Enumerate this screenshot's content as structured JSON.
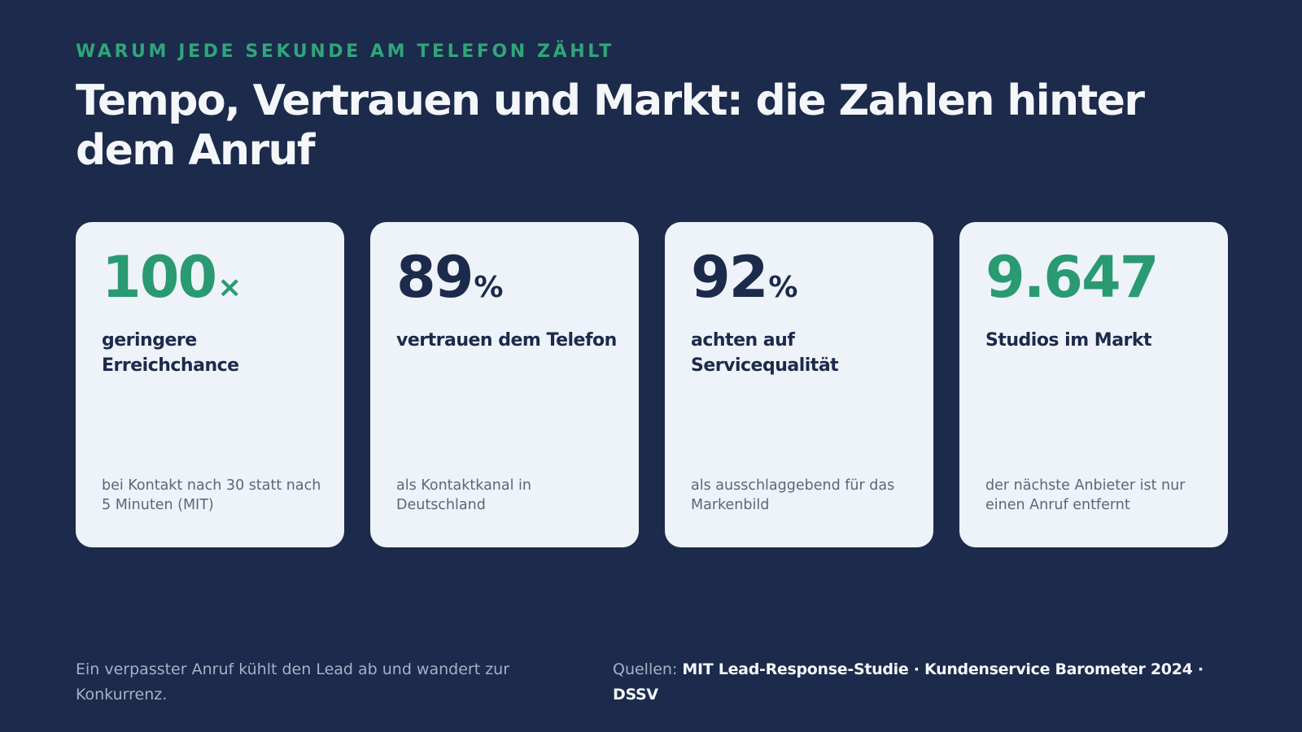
{
  "header": {
    "eyebrow": "WARUM JEDE SEKUNDE AM TELEFON ZÄHLT",
    "title": "Tempo, Vertrauen und Markt: die Zahlen hinter dem Anruf"
  },
  "colors": {
    "background": "#1c2a4b",
    "accent_green": "#2a9a73",
    "card_background": "#eef3f9",
    "navy_text": "#1c2a4b"
  },
  "cards": [
    {
      "value": "100",
      "unit": "×",
      "value_color": "green",
      "label": "geringere Erreichchance",
      "note": "bei Kontakt nach 30 statt nach 5 Minuten (MIT)"
    },
    {
      "value": "89",
      "unit": "%",
      "value_color": "navy",
      "label": "vertrauen dem Telefon",
      "note": "als Kontaktkanal in Deutschland"
    },
    {
      "value": "92",
      "unit": "%",
      "value_color": "navy",
      "label": "achten auf Servicequalität",
      "note": "als ausschlaggebend für das Markenbild"
    },
    {
      "value": "9.647",
      "unit": "",
      "value_color": "green",
      "label": "Studios im Markt",
      "note": "der nächste Anbieter ist nur einen Anruf entfernt"
    }
  ],
  "footer": {
    "message": "Ein verpasster Anruf kühlt den Lead ab und wandert zur Konkurrenz.",
    "sources_label": "Quellen: ",
    "sources": "MIT Lead-Response-Studie · Kundenservice Barometer 2024 · DSSV"
  }
}
